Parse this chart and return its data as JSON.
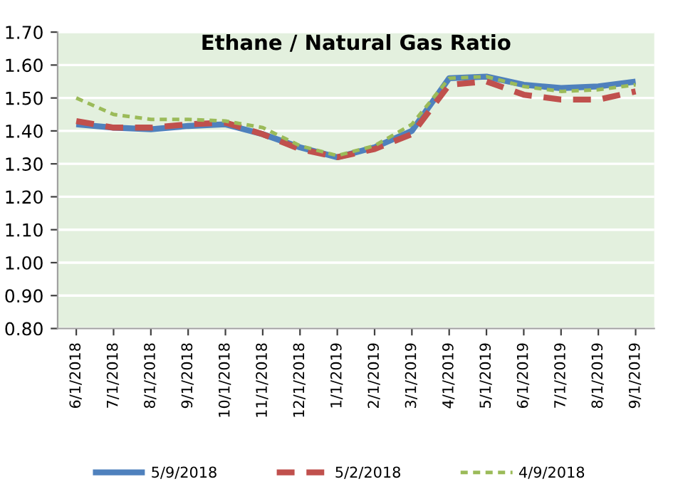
{
  "chart_data": {
    "type": "line",
    "title": "Ethane / Natural Gas Ratio",
    "categories": [
      "6/1/2018",
      "7/1/2018",
      "8/1/2018",
      "9/1/2018",
      "10/1/2018",
      "11/1/2018",
      "12/1/2018",
      "1/1/2019",
      "2/1/2019",
      "3/1/2019",
      "4/1/2019",
      "5/1/2019",
      "6/1/2019",
      "7/1/2019",
      "8/1/2019",
      "9/1/2019"
    ],
    "series": [
      {
        "name": "5/9/2018",
        "color": "#4f81bd",
        "line_style": "solid",
        "values": [
          1.42,
          1.41,
          1.405,
          1.415,
          1.42,
          1.39,
          1.35,
          1.32,
          1.35,
          1.4,
          1.56,
          1.565,
          1.54,
          1.53,
          1.535,
          1.55
        ]
      },
      {
        "name": "5/2/2018",
        "color": "#c0504d",
        "line_style": "dashed",
        "values": [
          1.43,
          1.41,
          1.41,
          1.42,
          1.425,
          1.39,
          1.345,
          1.32,
          1.345,
          1.39,
          1.54,
          1.55,
          1.51,
          1.495,
          1.495,
          1.52
        ]
      },
      {
        "name": "4/9/2018",
        "color": "#9bbb59",
        "line_style": "dotted",
        "values": [
          1.5,
          1.45,
          1.435,
          1.435,
          1.43,
          1.41,
          1.355,
          1.325,
          1.355,
          1.42,
          1.56,
          1.565,
          1.535,
          1.52,
          1.525,
          1.54
        ]
      }
    ],
    "ylim": [
      0.8,
      1.7
    ],
    "yticks": [
      {
        "value": 0.8,
        "label": "0.80"
      },
      {
        "value": 0.9,
        "label": "0.90"
      },
      {
        "value": 1.0,
        "label": "1.00"
      },
      {
        "value": 1.1,
        "label": "1.10"
      },
      {
        "value": 1.2,
        "label": "1.20"
      },
      {
        "value": 1.3,
        "label": "1.30"
      },
      {
        "value": 1.4,
        "label": "1.40"
      },
      {
        "value": 1.5,
        "label": "1.50"
      },
      {
        "value": 1.6,
        "label": "1.60"
      },
      {
        "value": 1.7,
        "label": "1.70"
      }
    ],
    "grid": "y",
    "legend": "bottom",
    "marker": "none"
  }
}
